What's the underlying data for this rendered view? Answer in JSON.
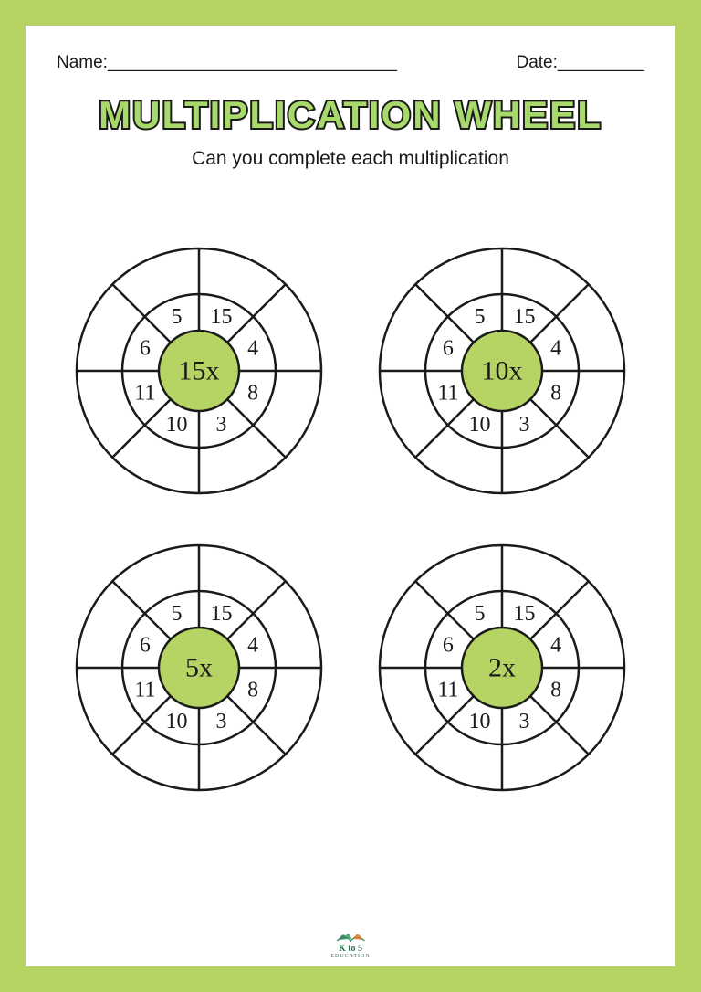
{
  "header": {
    "name_label": "Name:",
    "name_line": "______________________________",
    "date_label": "Date:",
    "date_line": "_________"
  },
  "title": "MULTIPLICATION WHEEL",
  "subtitle": "Can you complete each multiplication",
  "colors": {
    "page_border": "#b5d464",
    "page_bg": "#ffffff",
    "stroke": "#1a1a1a",
    "hub_fill": "#b5d464",
    "title_fill": "#a8d96b"
  },
  "wheel_geometry": {
    "svg_size": 280,
    "outer_r": 134,
    "middle_r": 84,
    "hub_r": 44,
    "stroke_width": 2.5,
    "segment_count": 8,
    "angle_offset_deg": 0,
    "number_fontsize": 24,
    "hub_fontsize": 30
  },
  "wheels": [
    {
      "center_label": "15x",
      "numbers": [
        "15",
        "4",
        "8",
        "3",
        "10",
        "11",
        "6",
        "5"
      ]
    },
    {
      "center_label": "10x",
      "numbers": [
        "15",
        "4",
        "8",
        "3",
        "10",
        "11",
        "6",
        "5"
      ]
    },
    {
      "center_label": "5x",
      "numbers": [
        "15",
        "4",
        "8",
        "3",
        "10",
        "11",
        "6",
        "5"
      ]
    },
    {
      "center_label": "2x",
      "numbers": [
        "15",
        "4",
        "8",
        "3",
        "10",
        "11",
        "6",
        "5"
      ]
    }
  ],
  "footer": {
    "text_top": "K to 5",
    "text_bottom": "EDUCATION"
  }
}
